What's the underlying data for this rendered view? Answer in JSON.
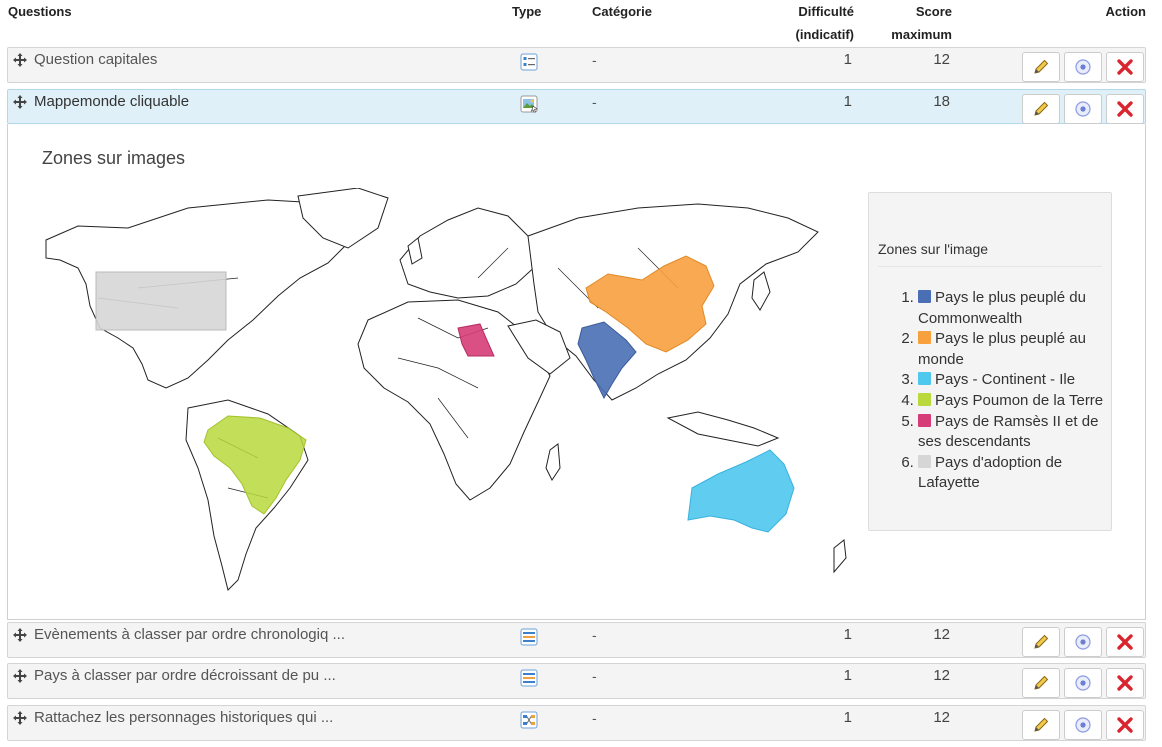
{
  "header": {
    "questions": "Questions",
    "type": "Type",
    "category": "Catégorie",
    "difficulty_line1": "Difficulté",
    "difficulty_line2": "(indicatif)",
    "score_line1": "Score",
    "score_line2": "maximum",
    "action": "Action"
  },
  "rows": [
    {
      "title": "Question capitales",
      "category": "-",
      "difficulty": "1",
      "score": "12",
      "type_icon": "multiple-choice-icon"
    },
    {
      "title": "Mappemonde cliquable",
      "category": "-",
      "difficulty": "1",
      "score": "18",
      "type_icon": "image-zones-icon"
    },
    {
      "title": "Evènements à classer par ordre chronologiq ...",
      "category": "-",
      "difficulty": "1",
      "score": "12",
      "type_icon": "ordering-icon"
    },
    {
      "title": "Pays à classer par ordre décroissant de pu ...",
      "category": "-",
      "difficulty": "1",
      "score": "12",
      "type_icon": "ordering-icon"
    },
    {
      "title": "Rattachez les personnages historiques qui ...",
      "category": "-",
      "difficulty": "1",
      "score": "12",
      "type_icon": "matching-icon"
    }
  ],
  "preview": {
    "title": "Zones sur images",
    "legend_title": "Zones sur l'image",
    "zones": [
      {
        "label": "Pays le plus peuplé du Commonwealth",
        "color": "#4a6fb5"
      },
      {
        "label": "Pays le plus peuplé au monde",
        "color": "#f7a03e"
      },
      {
        "label": "Pays - Continent - Ile",
        "color": "#4fc8ee"
      },
      {
        "label": "Pays Poumon de la Terre",
        "color": "#b8d83c"
      },
      {
        "label": "Pays de Ramsès II et de ses descendants",
        "color": "#d63d78"
      },
      {
        "label": "Pays d'adoption de Lafayette",
        "color": "#d6d6d6"
      }
    ]
  },
  "colors": {
    "active_row": "#dff0f8",
    "row_bg": "#f4f4f4",
    "edit_icon": "#e3b84a",
    "delete_icon": "#d9252e",
    "preview_icon": "#6a7fd0"
  }
}
